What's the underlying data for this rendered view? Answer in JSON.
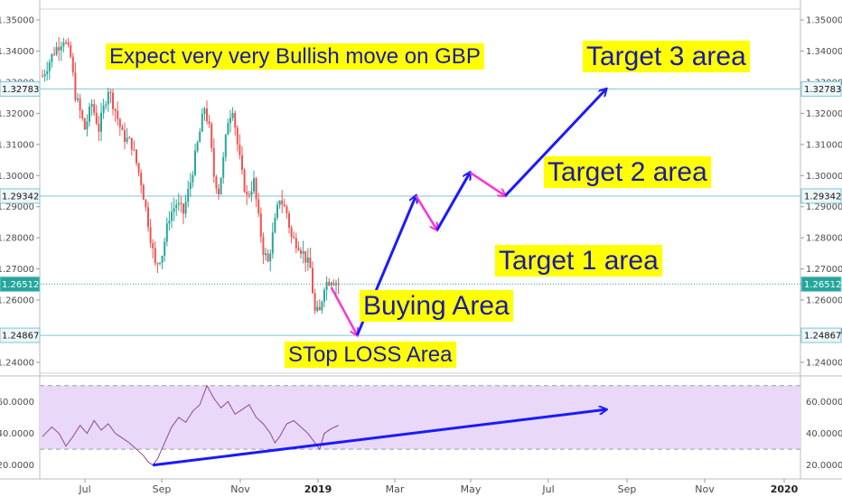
{
  "chart_data": [
    {
      "type": "candlestick",
      "instrument": "GBP",
      "x_ticks": [
        "Jul",
        "Sep",
        "Nov",
        "2019",
        "Mar",
        "May",
        "Jul",
        "Sep",
        "Nov",
        "2020"
      ],
      "y_ticks": [
        "1.35000",
        "1.34000",
        "1.33000",
        "1.32000",
        "1.31000",
        "1.30000",
        "1.29000",
        "1.28000",
        "1.27000",
        "1.26000",
        "1.25000",
        "1.24000"
      ],
      "y_tick_values": [
        1.35,
        1.34,
        1.33,
        1.32,
        1.31,
        1.3,
        1.29,
        1.28,
        1.27,
        1.26,
        1.25,
        1.24
      ],
      "ylim": [
        1.2365,
        1.3535
      ],
      "price_path": [
        [
          0,
          1.332
        ],
        [
          5,
          1.34
        ],
        [
          9,
          1.344
        ],
        [
          12,
          1.338
        ],
        [
          14,
          1.326
        ],
        [
          18,
          1.315
        ],
        [
          21,
          1.323
        ],
        [
          24,
          1.315
        ],
        [
          28,
          1.328
        ],
        [
          31,
          1.321
        ],
        [
          34,
          1.313
        ],
        [
          38,
          1.31
        ],
        [
          42,
          1.298
        ],
        [
          45,
          1.285
        ],
        [
          48,
          1.271
        ],
        [
          51,
          1.275
        ],
        [
          54,
          1.287
        ],
        [
          57,
          1.291
        ],
        [
          60,
          1.288
        ],
        [
          63,
          1.298
        ],
        [
          66,
          1.31
        ],
        [
          69,
          1.322
        ],
        [
          71,
          1.315
        ],
        [
          73,
          1.3
        ],
        [
          75,
          1.295
        ],
        [
          77,
          1.305
        ],
        [
          79,
          1.318
        ],
        [
          81,
          1.322
        ],
        [
          83,
          1.31
        ],
        [
          85,
          1.3
        ],
        [
          87,
          1.293
        ],
        [
          90,
          1.298
        ],
        [
          92,
          1.286
        ],
        [
          94,
          1.276
        ],
        [
          96,
          1.272
        ],
        [
          99,
          1.285
        ],
        [
          101,
          1.293
        ],
        [
          104,
          1.288
        ],
        [
          106,
          1.28
        ],
        [
          109,
          1.278
        ],
        [
          111,
          1.275
        ],
        [
          114,
          1.27
        ],
        [
          116,
          1.256
        ],
        [
          118,
          1.256
        ],
        [
          120,
          1.265
        ],
        [
          123,
          1.267
        ],
        [
          126,
          1.2651
        ]
      ],
      "price_series_color": "#26a69a",
      "down_color": "#ef5350",
      "horizontal_levels": [
        {
          "value": 1.32783,
          "label": "1.32783",
          "style": "solid"
        },
        {
          "value": 1.29342,
          "label": "1.29342",
          "style": "solid"
        },
        {
          "value": 1.26512,
          "label": "1.26512",
          "style": "dotted",
          "badge_color": "#26a69a"
        },
        {
          "value": 1.24867,
          "label": "1.24867",
          "style": "solid"
        }
      ],
      "projection_path": [
        {
          "x": 134,
          "y": 1.2487,
          "color": "#1a1aff"
        },
        {
          "x": 159,
          "y": 1.2935,
          "color": "#ff33cc"
        },
        {
          "x": 168,
          "y": 1.2825,
          "color": "#1a1aff"
        },
        {
          "x": 182,
          "y": 1.301,
          "color": "#ff33cc"
        },
        {
          "x": 197,
          "y": 1.2935,
          "color": "#1a1aff"
        },
        {
          "x": 240,
          "y": 1.3278,
          "color": ""
        }
      ],
      "first_drop": {
        "x0": 123,
        "y0": 1.264,
        "x1": 134,
        "y1": 1.2487,
        "color": "#ff33cc"
      },
      "annotations": [
        {
          "text": "Expect very very Bullish move on GBP",
          "x": 117,
          "y": 70,
          "size": 24
        },
        {
          "text": "Target 3 area",
          "x": 645,
          "y": 72,
          "size": 30
        },
        {
          "text": "Target 2 area",
          "x": 602,
          "y": 200,
          "size": 30
        },
        {
          "text": "Target 1 area",
          "x": 548,
          "y": 298,
          "size": 30
        },
        {
          "text": "Buying Area",
          "x": 398,
          "y": 348,
          "size": 30
        },
        {
          "text": "STop LOSS Area",
          "x": 315,
          "y": 400,
          "size": 24
        }
      ],
      "annotation_bg": "#ffff00",
      "annotation_color": "#1a1aa8"
    },
    {
      "type": "line",
      "indicator": "RSI",
      "y_ticks": [
        "60.0000",
        "40.0000",
        "20.0000"
      ],
      "y_tick_values": [
        60,
        40,
        20
      ],
      "ylim": [
        17,
        75
      ],
      "upper_band": 70,
      "lower_band": 30,
      "band_color": "#e9d8f8",
      "line_color": "#8e4a8e",
      "rsi_path": [
        [
          0,
          38
        ],
        [
          4,
          44
        ],
        [
          7,
          40
        ],
        [
          10,
          32
        ],
        [
          13,
          38
        ],
        [
          16,
          45
        ],
        [
          19,
          40
        ],
        [
          22,
          48
        ],
        [
          25,
          42
        ],
        [
          28,
          46
        ],
        [
          31,
          40
        ],
        [
          34,
          37
        ],
        [
          37,
          34
        ],
        [
          40,
          30
        ],
        [
          43,
          26
        ],
        [
          45,
          22
        ],
        [
          47,
          20
        ],
        [
          49,
          24
        ],
        [
          52,
          34
        ],
        [
          55,
          44
        ],
        [
          58,
          50
        ],
        [
          61,
          47
        ],
        [
          64,
          54
        ],
        [
          67,
          58
        ],
        [
          70,
          70
        ],
        [
          73,
          62
        ],
        [
          76,
          56
        ],
        [
          79,
          60
        ],
        [
          82,
          52
        ],
        [
          85,
          55
        ],
        [
          88,
          58
        ],
        [
          91,
          50
        ],
        [
          94,
          46
        ],
        [
          97,
          40
        ],
        [
          99,
          34
        ],
        [
          101,
          38
        ],
        [
          104,
          46
        ],
        [
          107,
          48
        ],
        [
          110,
          44
        ],
        [
          113,
          40
        ],
        [
          116,
          34
        ],
        [
          118,
          30
        ],
        [
          120,
          40
        ],
        [
          123,
          43
        ],
        [
          126,
          45
        ]
      ],
      "trendline": {
        "x0": 47,
        "y0": 20,
        "x1": 240,
        "y1": 55,
        "color": "#1a1aff"
      }
    }
  ]
}
